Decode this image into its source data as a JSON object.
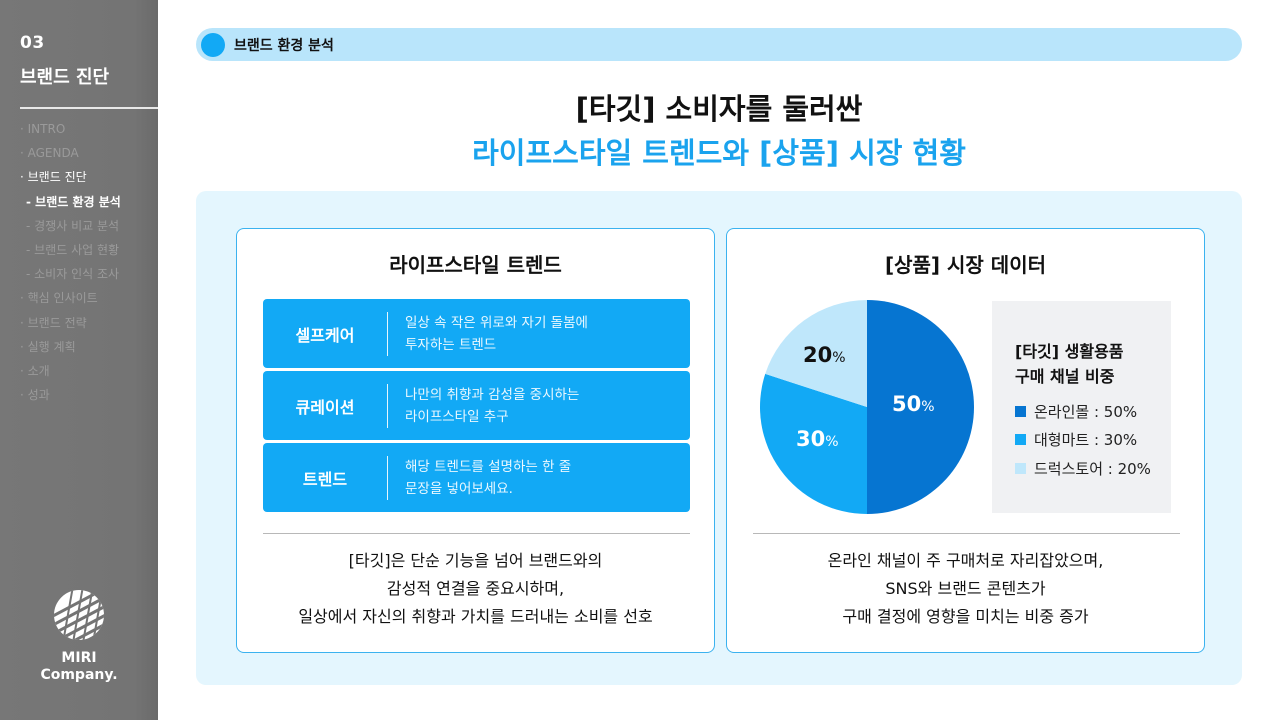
{
  "sidebar": {
    "section_number": "03",
    "section_title": "브랜드 진단",
    "nav": [
      {
        "label": "· INTRO",
        "active": false,
        "sub": false
      },
      {
        "label": "· AGENDA",
        "active": false,
        "sub": false
      },
      {
        "label": "· 브랜드 진단",
        "active": true,
        "sub": false
      },
      {
        "label": "- 브랜드 환경 분석",
        "active": true,
        "sub": true
      },
      {
        "label": "- 경쟁사 비교 분석",
        "active": false,
        "sub": true
      },
      {
        "label": "- 브랜드 사업 현황",
        "active": false,
        "sub": true
      },
      {
        "label": "- 소비자 인식 조사",
        "active": false,
        "sub": true
      },
      {
        "label": "· 핵심 인사이트",
        "active": false,
        "sub": false
      },
      {
        "label": "· 브랜드 전략",
        "active": false,
        "sub": false
      },
      {
        "label": "· 실행 계획",
        "active": false,
        "sub": false
      },
      {
        "label": "· 소개",
        "active": false,
        "sub": false
      },
      {
        "label": "· 성과",
        "active": false,
        "sub": false
      }
    ],
    "logo": {
      "line1": "MIRI",
      "line2": "Company."
    }
  },
  "header": {
    "section_label": "브랜드 환경 분석",
    "title_line1": "[타깃] 소비자를 둘러싼",
    "title_line2": "라이프스타일 트렌드와 [상품] 시장 현황"
  },
  "left_card": {
    "title": "라이프스타일 트렌드",
    "trends": [
      {
        "name": "셀프케어",
        "desc": "일상 속 작은 위로와 자기 돌봄에\n투자하는 트렌드"
      },
      {
        "name": "큐레이션",
        "desc": "나만의 취향과 감성을 중시하는\n라이프스타일 추구"
      },
      {
        "name": "트렌드",
        "desc": "해당 트렌드를 설명하는 한 줄\n문장을 넣어보세요."
      }
    ],
    "summary": "[타깃]은 단순 기능을 넘어 브랜드와의\n감성적 연결을 중요시하며,\n일상에서 자신의 취향과 가치를 드러내는 소비를 선호"
  },
  "right_card": {
    "title": "[상품] 시장 데이터",
    "legend_title": "[타깃] 생활용품\n구매 채널 비중",
    "legend": [
      {
        "label": "온라인몰  : 50%",
        "color": "#0675d1"
      },
      {
        "label": "대형마트 : 30%",
        "color": "#12a9f5"
      },
      {
        "label": "드럭스토어 : 20%",
        "color": "#bfe7fb"
      }
    ],
    "pie_labels": [
      {
        "value": "50",
        "unit": "%",
        "color": "#ffffff"
      },
      {
        "value": "30",
        "unit": "%",
        "color": "#ffffff"
      },
      {
        "value": "20",
        "unit": "%",
        "color": "#111111"
      }
    ],
    "summary": "온라인 채널이 주 구매처로 자리잡았으며,\nSNS와 브랜드 콘텐츠가\n구매 결정에 영향을 미치는 비중 증가"
  },
  "colors": {
    "accent": "#12a9f5",
    "accent_dark": "#0675d1",
    "accent_light": "#bfe7fb",
    "title_blue": "#1aa3ee",
    "pill_bg": "#b9e5fb",
    "content_bg": "#e4f6fe",
    "sidebar_bg": "#777777"
  },
  "chart_data": {
    "type": "pie",
    "title": "[타깃] 생활용품 구매 채널 비중",
    "categories": [
      "온라인몰",
      "대형마트",
      "드럭스토어"
    ],
    "values": [
      50,
      30,
      20
    ],
    "unit": "%",
    "colors": [
      "#0675d1",
      "#12a9f5",
      "#bfe7fb"
    ],
    "start_angle": "12 o'clock, clockwise",
    "legend_position": "right"
  }
}
